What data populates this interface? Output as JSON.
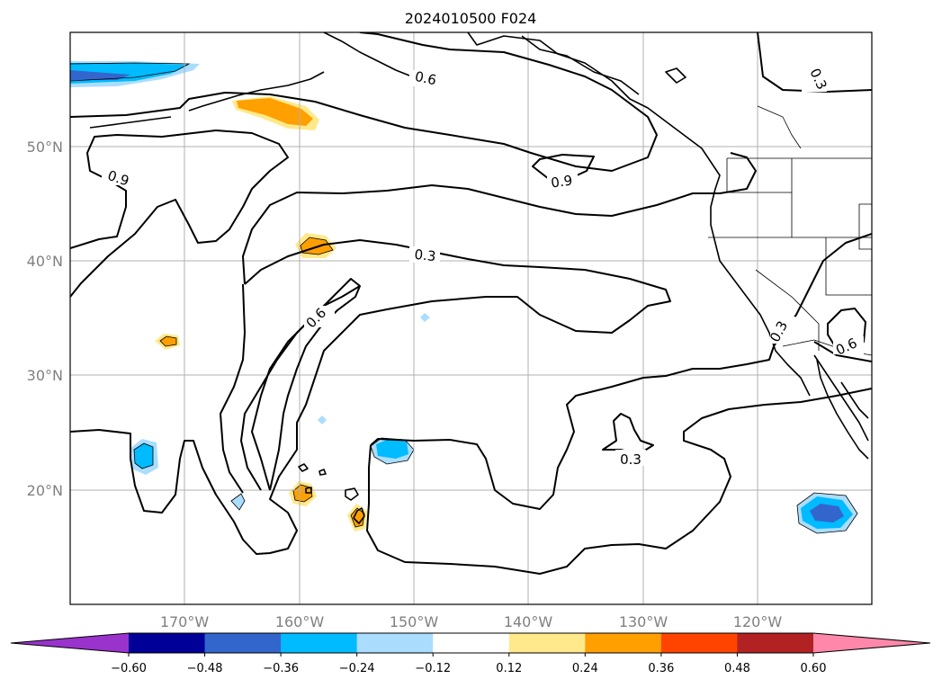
{
  "title": "2024010500 F024",
  "latitude_labels": [
    "50°N",
    "40°N",
    "30°N",
    "20°N"
  ],
  "longitude_labels": [
    "170°W",
    "160°W",
    "150°W",
    "140°W",
    "130°W",
    "120°W"
  ],
  "contour_labels": [
    "0.6",
    "0.3",
    "0.9",
    "0.9",
    "0.3",
    "0.6",
    "0.3",
    "0.3",
    "0.6"
  ],
  "colorbar": {
    "ticks": [
      "−0.60",
      "−0.48",
      "−0.36",
      "−0.24",
      "−0.12",
      "0.12",
      "0.24",
      "0.36",
      "0.48",
      "0.60"
    ],
    "colors": [
      "#9933cc",
      "#000099",
      "#3366cc",
      "#00bbff",
      "#aaddff",
      "#ffffff",
      "#ffe98a",
      "#ff9f00",
      "#ff4400",
      "#b22222",
      "#ff88aa"
    ]
  },
  "shading_colors": {
    "light_blue": "#aaddff",
    "cyan": "#00bbff",
    "blue": "#3366cc",
    "light_yellow": "#ffe98a",
    "orange": "#ff9f00"
  }
}
